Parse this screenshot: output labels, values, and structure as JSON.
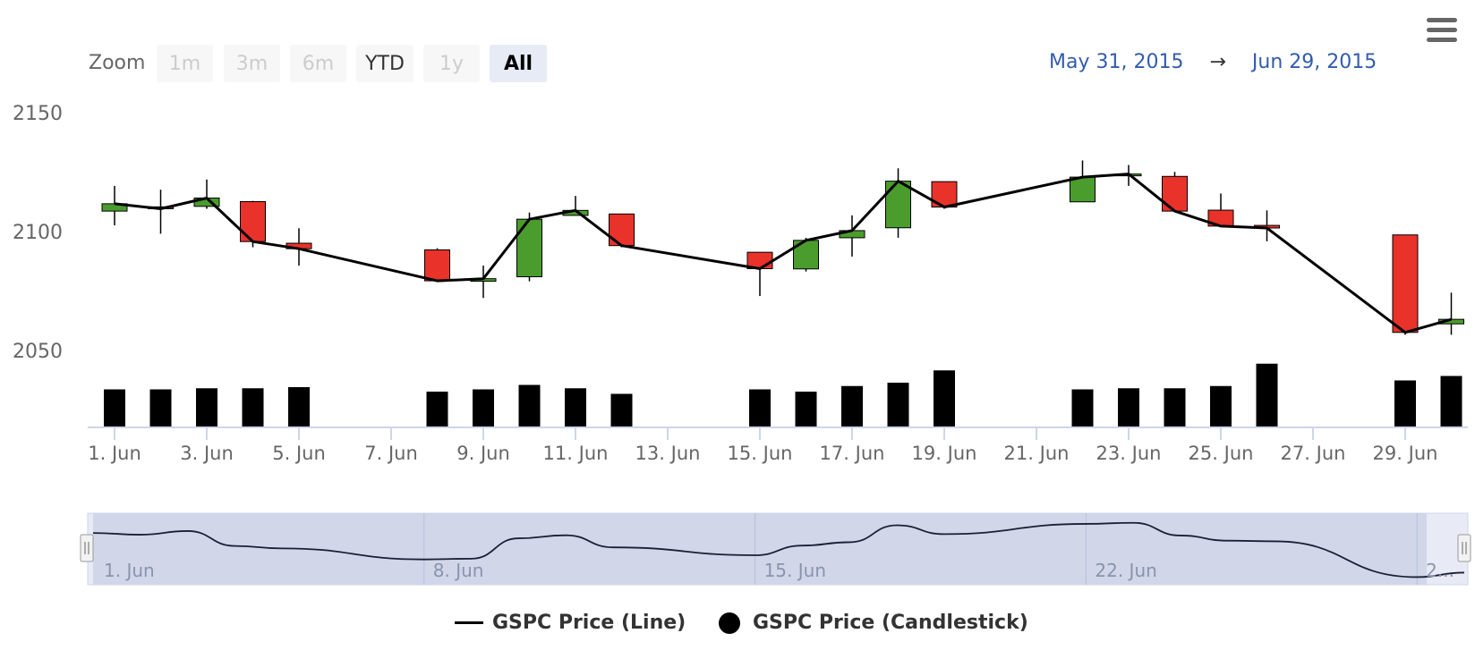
{
  "range_selector": {
    "zoom_label": "Zoom",
    "buttons": [
      {
        "label": "1m",
        "state": "disabled"
      },
      {
        "label": "3m",
        "state": "disabled"
      },
      {
        "label": "6m",
        "state": "disabled"
      },
      {
        "label": "YTD",
        "state": "enabled"
      },
      {
        "label": "1y",
        "state": "disabled"
      },
      {
        "label": "All",
        "state": "selected"
      }
    ],
    "from_date": "May 31, 2015",
    "arrow": "→",
    "to_date": "Jun 29, 2015"
  },
  "menu": {
    "icon": "hamburger-menu-icon"
  },
  "legend": {
    "line_label": "GSPC Price (Line)",
    "candle_label": "GSPC Price (Candlestick)"
  },
  "colors": {
    "up": "#4a9c2d",
    "down": "#e8322a",
    "line": "#000000",
    "volume": "#000000",
    "navigator_fill": "#ccd3e6",
    "navigator_line": "#1a1f33",
    "axis_label": "#666666",
    "date_range": "#335cad"
  },
  "chart_data": {
    "type": "candlestick",
    "title": "",
    "ylim": [
      2050,
      2150
    ],
    "y_ticks": [
      "2050",
      "2100",
      "2150"
    ],
    "x_ticks": [
      "1. Jun",
      "3. Jun",
      "5. Jun",
      "7. Jun",
      "9. Jun",
      "11. Jun",
      "13. Jun",
      "15. Jun",
      "17. Jun",
      "19. Jun",
      "21. Jun",
      "23. Jun",
      "25. Jun",
      "27. Jun",
      "29. Jun"
    ],
    "navigator_ticks": [
      "1. Jun",
      "8. Jun",
      "15. Jun",
      "22. Jun",
      "2..."
    ],
    "x": [
      "2015-06-01",
      "2015-06-02",
      "2015-06-03",
      "2015-06-04",
      "2015-06-05",
      "2015-06-08",
      "2015-06-09",
      "2015-06-10",
      "2015-06-11",
      "2015-06-12",
      "2015-06-15",
      "2015-06-16",
      "2015-06-17",
      "2015-06-18",
      "2015-06-19",
      "2015-06-22",
      "2015-06-23",
      "2015-06-24",
      "2015-06-25",
      "2015-06-26",
      "2015-06-29",
      "2015-06-30"
    ],
    "series": [
      {
        "name": "GSPC Price (Candlestick)",
        "open": [
          2108.6,
          2110.4,
          2110.6,
          2112.6,
          2095.1,
          2092.3,
          2079.1,
          2081.0,
          2106.8,
          2107.4,
          2091.3,
          2084.3,
          2097.4,
          2101.6,
          2121.0,
          2112.5,
          2123.8,
          2123.2,
          2109.0,
          2102.6,
          2098.6,
          2061.2
        ],
        "high": [
          2119.2,
          2117.6,
          2121.9,
          2112.9,
          2101.4,
          2093.0,
          2085.7,
          2108.0,
          2115.0,
          2107.4,
          2091.3,
          2097.4,
          2106.8,
          2126.6,
          2121.0,
          2129.9,
          2128.0,
          2125.1,
          2116.0,
          2108.9,
          2098.6,
          2074.3
        ],
        "low": [
          2102.6,
          2099.1,
          2109.6,
          2093.4,
          2085.7,
          2079.1,
          2072.1,
          2079.1,
          2106.8,
          2093.4,
          2072.9,
          2083.2,
          2089.5,
          2097.4,
          2109.6,
          2112.5,
          2119.2,
          2108.6,
          2102.0,
          2095.9,
          2056.6,
          2056.6
        ],
        "close": [
          2111.7,
          2109.6,
          2114.1,
          2095.8,
          2092.8,
          2079.3,
          2080.2,
          2105.2,
          2108.9,
          2094.1,
          2084.4,
          2096.3,
          2100.4,
          2121.2,
          2110.3,
          2122.9,
          2124.2,
          2108.6,
          2102.3,
          2101.5,
          2057.6,
          2063.1
        ],
        "volume": [
          3.4,
          3.4,
          3.5,
          3.5,
          3.6,
          3.2,
          3.4,
          3.8,
          3.5,
          3.0,
          3.4,
          3.2,
          3.7,
          4.0,
          5.1,
          3.4,
          3.5,
          3.5,
          3.7,
          5.7,
          4.2,
          4.6
        ]
      },
      {
        "name": "GSPC Price (Line)",
        "values": [
          2111.7,
          2109.6,
          2114.1,
          2095.8,
          2092.8,
          2079.3,
          2080.2,
          2105.2,
          2108.9,
          2094.1,
          2084.4,
          2096.3,
          2100.4,
          2121.2,
          2110.3,
          2122.9,
          2124.2,
          2108.6,
          2102.3,
          2101.5,
          2057.6,
          2063.1
        ]
      }
    ],
    "legend_position": "bottom-center",
    "grid": false
  }
}
